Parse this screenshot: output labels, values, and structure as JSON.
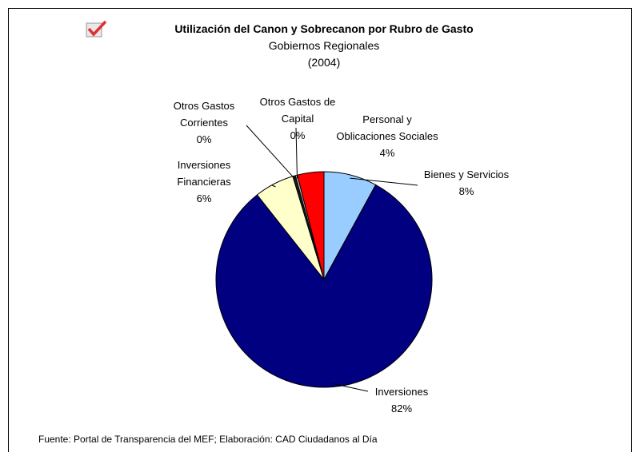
{
  "chart_data": {
    "type": "pie",
    "title": "Utilización del Canon y Sobrecanon por Rubro de Gasto",
    "subtitle": [
      "Gobiernos Regionales",
      "(2004)"
    ],
    "categories": [
      "Bienes y Servicios",
      "Inversiones",
      "Inversiones Financieras",
      "Otros Gastos Corrientes",
      "Otros Gastos de Capital",
      "Personal y Oblicaciones Sociales"
    ],
    "values": [
      8,
      82,
      6,
      0.4,
      0.3,
      4
    ],
    "value_labels": [
      "8%",
      "82%",
      "6%",
      "0%",
      "0%",
      "4%"
    ],
    "colors": [
      "#99ccff",
      "#000080",
      "#ffffcc",
      "#1a1a1a",
      "#c0c0c0",
      "#ff0000"
    ],
    "source": "Fuente: Portal de Transparencia del MEF; Elaboración: CAD Ciudadanos al Día"
  }
}
